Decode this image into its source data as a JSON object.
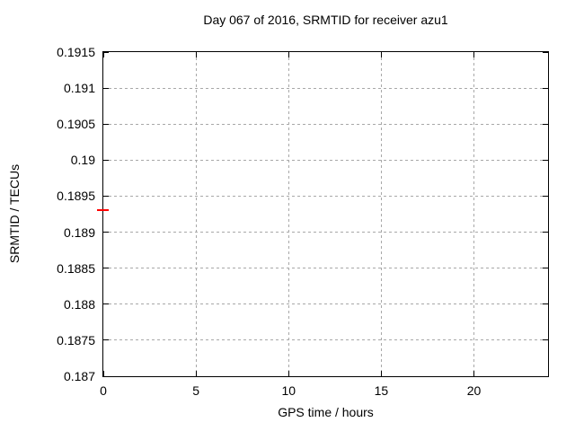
{
  "chart_data": {
    "type": "scatter",
    "title": "Day 067 of 2016, SRMTID for receiver azu1",
    "xlabel": "GPS time / hours",
    "ylabel": "SRMTID / TECUs",
    "xlim": [
      0,
      24
    ],
    "ylim": [
      0.187,
      0.1915
    ],
    "grid": true,
    "legend": "none",
    "xticks": [
      {
        "value": 0,
        "label": "0"
      },
      {
        "value": 5,
        "label": "5"
      },
      {
        "value": 10,
        "label": "10"
      },
      {
        "value": 15,
        "label": "15"
      },
      {
        "value": 20,
        "label": "20"
      }
    ],
    "yticks": [
      {
        "value": 0.187,
        "label": "0.187"
      },
      {
        "value": 0.1875,
        "label": "0.1875"
      },
      {
        "value": 0.188,
        "label": "0.188"
      },
      {
        "value": 0.1885,
        "label": "0.1885"
      },
      {
        "value": 0.189,
        "label": "0.189"
      },
      {
        "value": 0.1895,
        "label": "0.1895"
      },
      {
        "value": 0.19,
        "label": "0.19"
      },
      {
        "value": 0.1905,
        "label": "0.1905"
      },
      {
        "value": 0.191,
        "label": "0.191"
      },
      {
        "value": 0.1915,
        "label": "0.1915"
      }
    ],
    "series": [
      {
        "name": "SRMTID",
        "marker": "horizontal-dash",
        "color": "#ff0000",
        "points": [
          {
            "x": 0,
            "y": 0.1893
          }
        ]
      }
    ],
    "colors": {
      "background": "#ffffff",
      "border": "#000000",
      "grid": "#a8a8a8",
      "text": "#000000"
    }
  }
}
